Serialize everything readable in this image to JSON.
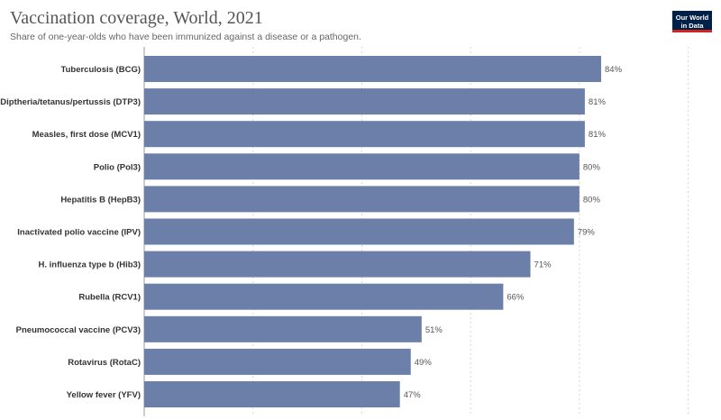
{
  "chart_data": {
    "type": "bar",
    "orientation": "horizontal",
    "title": "Vaccination coverage, World, 2021",
    "subtitle": "Share of one-year-olds who have been immunized against a disease or a pathogen.",
    "categories": [
      "Tuberculosis (BCG)",
      "Diptheria/tetanus/pertussis (DTP3)",
      "Measles, first dose (MCV1)",
      "Polio (Pol3)",
      "Hepatitis B (HepB3)",
      "Inactivated polio vaccine (IPV)",
      "H. influenza type b (Hib3)",
      "Rubella (RCV1)",
      "Pneumococcal vaccine (PCV3)",
      "Rotavirus (RotaC)",
      "Yellow fever (YFV)"
    ],
    "values": [
      84,
      81,
      81,
      80,
      80,
      79,
      71,
      66,
      51,
      49,
      47
    ],
    "value_labels": [
      "84%",
      "81%",
      "81%",
      "80%",
      "80%",
      "79%",
      "71%",
      "66%",
      "51%",
      "49%",
      "47%"
    ],
    "unit": "%",
    "xlim": [
      0,
      100
    ],
    "grid": true,
    "grid_style": "dotted vertical",
    "bar_color": "#6b7fa9"
  },
  "logo": {
    "line1": "Our World",
    "line2": "in Data"
  }
}
